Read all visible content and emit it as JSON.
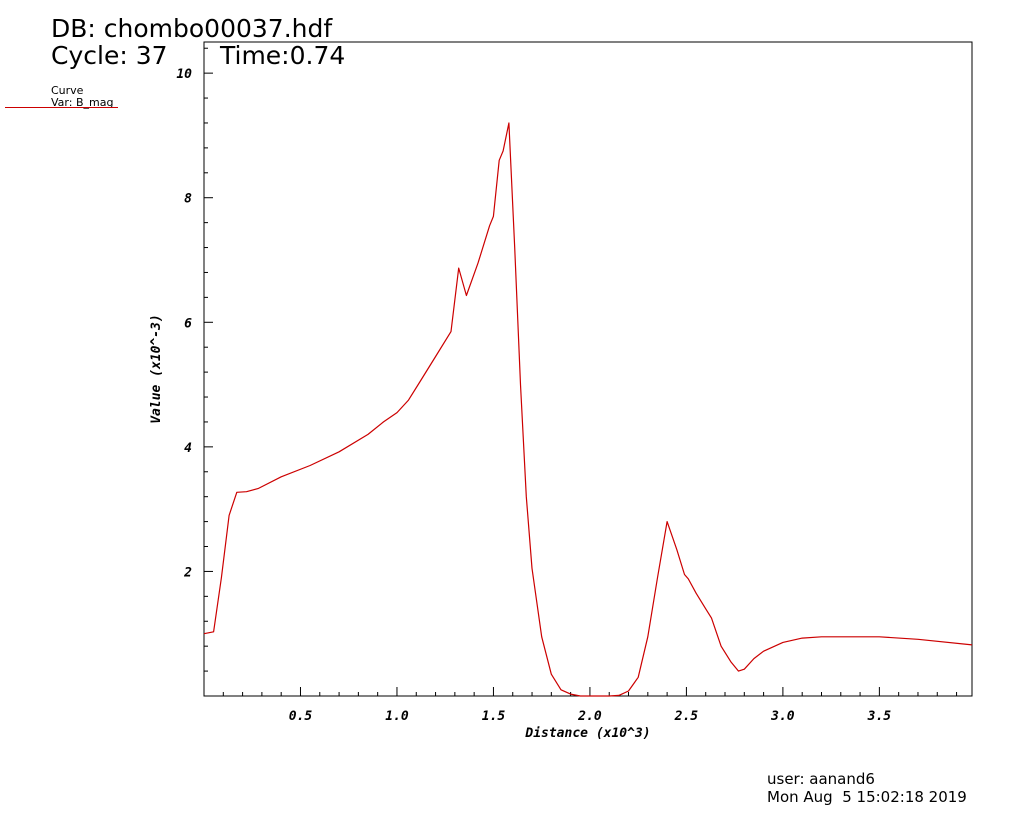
{
  "header": {
    "db": "DB: chombo00037.hdf",
    "cycle": "Cycle: 37",
    "time": "Time:0.74"
  },
  "legend": {
    "title": "Curve",
    "var": "Var: B_mag",
    "color": "#cc0000"
  },
  "footer": {
    "user": "user: aanand6",
    "date": "Mon Aug  5 15:02:18 2019"
  },
  "chart_data": {
    "type": "line",
    "xlabel": "Distance (x10^3)",
    "ylabel": "Value (x10^-3)",
    "xlim": [
      0.0,
      3.98
    ],
    "ylim": [
      0.0,
      10.5
    ],
    "x_ticks": [
      {
        "v": 0.5,
        "label": "0.5"
      },
      {
        "v": 1.0,
        "label": "1.0"
      },
      {
        "v": 1.5,
        "label": "1.5"
      },
      {
        "v": 2.0,
        "label": "2.0"
      },
      {
        "v": 2.5,
        "label": "2.5"
      },
      {
        "v": 3.0,
        "label": "3.0"
      },
      {
        "v": 3.5,
        "label": "3.5"
      }
    ],
    "y_ticks": [
      {
        "v": 2,
        "label": "2"
      },
      {
        "v": 4,
        "label": "4"
      },
      {
        "v": 6,
        "label": "6"
      },
      {
        "v": 8,
        "label": "8"
      },
      {
        "v": 10,
        "label": "10"
      }
    ],
    "series": [
      {
        "color": "#cc0000",
        "x": [
          0.0,
          0.05,
          0.09,
          0.13,
          0.17,
          0.22,
          0.28,
          0.4,
          0.55,
          0.7,
          0.85,
          0.93,
          1.0,
          1.06,
          1.12,
          1.2,
          1.28,
          1.32,
          1.36,
          1.42,
          1.48,
          1.5,
          1.53,
          1.55,
          1.58,
          1.61,
          1.64,
          1.67,
          1.7,
          1.75,
          1.8,
          1.85,
          1.9,
          1.95,
          2.0,
          2.05,
          2.1,
          2.15,
          2.2,
          2.25,
          2.3,
          2.35,
          2.4,
          2.45,
          2.49,
          2.51,
          2.55,
          2.6,
          2.63,
          2.68,
          2.73,
          2.77,
          2.8,
          2.85,
          2.9,
          3.0,
          3.1,
          3.2,
          3.3,
          3.5,
          3.7,
          3.98
        ],
        "y": [
          1.0,
          1.03,
          1.9,
          2.9,
          3.27,
          3.28,
          3.33,
          3.52,
          3.7,
          3.92,
          4.2,
          4.4,
          4.55,
          4.75,
          5.05,
          5.45,
          5.85,
          6.87,
          6.43,
          6.95,
          7.55,
          7.7,
          8.6,
          8.75,
          9.2,
          7.2,
          5.0,
          3.2,
          2.05,
          0.95,
          0.35,
          0.1,
          0.03,
          0.0,
          0.0,
          0.0,
          0.0,
          0.01,
          0.08,
          0.3,
          0.95,
          1.9,
          2.8,
          2.35,
          1.95,
          1.88,
          1.65,
          1.4,
          1.25,
          0.8,
          0.55,
          0.4,
          0.43,
          0.6,
          0.72,
          0.86,
          0.93,
          0.95,
          0.95,
          0.95,
          0.91,
          0.82
        ]
      }
    ]
  }
}
